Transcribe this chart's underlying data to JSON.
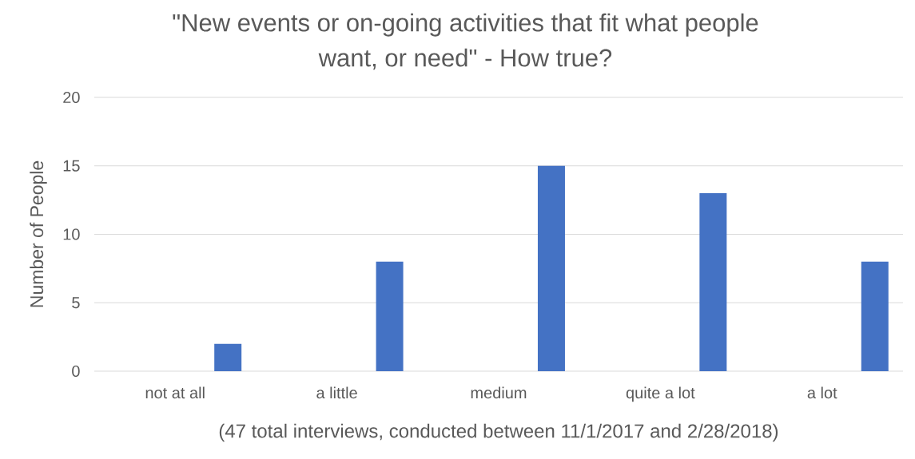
{
  "chart_data": {
    "type": "bar",
    "title": "\"New events or on-going activities that fit what people want, or need\" - How true?",
    "ylabel": "Number of People",
    "categories": [
      "not at all",
      "a little",
      "medium",
      "quite a lot",
      "a lot"
    ],
    "values": [
      2,
      8,
      15,
      13,
      8
    ],
    "color": "#4472c4",
    "ylim": [
      0,
      20
    ],
    "yticks": [
      0,
      5,
      10,
      15,
      20
    ],
    "grid": "y",
    "annotations": [
      "(47 total interviews, conducted between 11/1/2017 and 2/28/2018)"
    ]
  }
}
